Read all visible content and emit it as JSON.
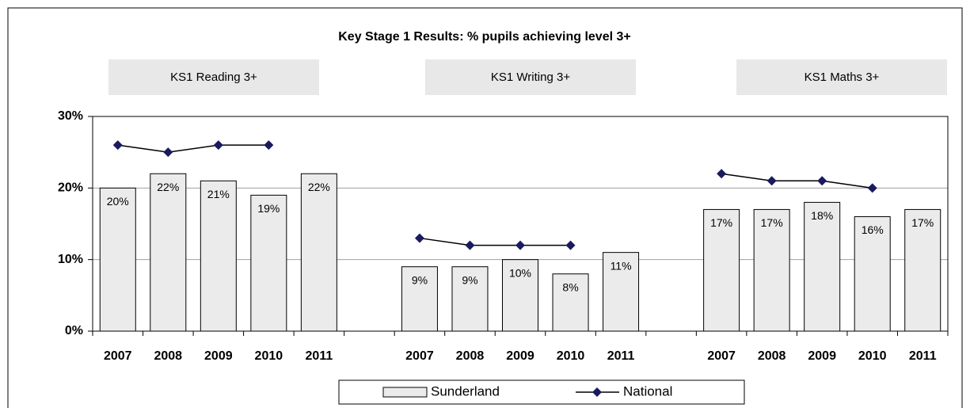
{
  "chart_data": {
    "type": "bar",
    "title": "Key Stage 1 Results:  % pupils achieving level 3+",
    "panels": [
      "KS1 Reading 3+",
      "KS1 Writing 3+",
      "KS1 Maths 3+"
    ],
    "categories": [
      "2007",
      "2008",
      "2009",
      "2010",
      "2011",
      null,
      "2007",
      "2008",
      "2009",
      "2010",
      "2011",
      null,
      "2007",
      "2008",
      "2009",
      "2010",
      "2011"
    ],
    "series": [
      {
        "name": "Sunderland",
        "type": "bar",
        "color": "#ebebeb",
        "values": [
          20,
          22,
          21,
          19,
          22,
          null,
          9,
          9,
          10,
          8,
          11,
          null,
          17,
          17,
          18,
          16,
          17
        ],
        "value_labels": [
          "20%",
          "22%",
          "21%",
          "19%",
          "22%",
          null,
          "9%",
          "9%",
          "10%",
          "8%",
          "11%",
          null,
          "17%",
          "17%",
          "18%",
          "16%",
          "17%"
        ]
      },
      {
        "name": "National",
        "type": "line",
        "color": "#1a1a5e",
        "values": [
          26,
          25,
          26,
          26,
          null,
          null,
          13,
          12,
          12,
          12,
          null,
          null,
          22,
          21,
          21,
          20,
          null
        ]
      }
    ],
    "ylim": [
      0,
      30
    ],
    "yticks": [
      {
        "value": 0,
        "label": "0%"
      },
      {
        "value": 10,
        "label": "10%"
      },
      {
        "value": 20,
        "label": "20%"
      },
      {
        "value": 30,
        "label": "30%"
      }
    ],
    "grid": true,
    "legend": "bottom"
  }
}
